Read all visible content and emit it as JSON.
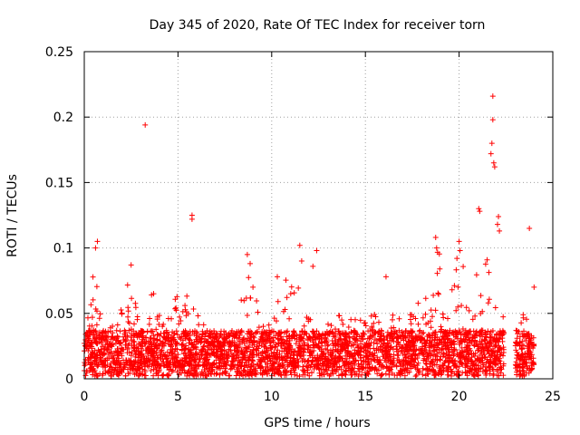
{
  "chart_data": {
    "type": "scatter",
    "title": "Day 345 of 2020, Rate Of TEC Index for receiver torn",
    "xlabel": "GPS time / hours",
    "ylabel": "ROTI / TECUs",
    "xlim": [
      0,
      25
    ],
    "ylim": [
      0,
      0.25
    ],
    "xticks": [
      0,
      5,
      10,
      15,
      20,
      25
    ],
    "yticks": [
      0,
      0.05,
      0.1,
      0.15,
      0.2,
      0.25
    ],
    "xtick_labels": [
      "0",
      "5",
      "10",
      "15",
      "20",
      "25"
    ],
    "ytick_labels": [
      "0",
      "0.05",
      "0.1",
      "0.15",
      "0.2",
      "0.25"
    ],
    "grid": true,
    "marker": "+",
    "color": "#ff0000",
    "series": [
      {
        "name": "ROTI",
        "dense_band": {
          "x_range": [
            0,
            24
          ],
          "gaps_hours": [
            [
              22.4,
              23.0
            ]
          ],
          "typical_max": 0.035,
          "peak_envelope": [
            [
              0.0,
              0.035
            ],
            [
              0.3,
              0.06
            ],
            [
              0.6,
              0.1
            ],
            [
              0.9,
              0.045
            ],
            [
              1.5,
              0.04
            ],
            [
              2.0,
              0.075
            ],
            [
              2.6,
              0.07
            ],
            [
              3.0,
              0.04
            ],
            [
              3.6,
              0.065
            ],
            [
              4.2,
              0.045
            ],
            [
              4.8,
              0.07
            ],
            [
              5.5,
              0.065
            ],
            [
              6.0,
              0.05
            ],
            [
              7.0,
              0.03
            ],
            [
              8.0,
              0.03
            ],
            [
              8.8,
              0.095
            ],
            [
              9.3,
              0.06
            ],
            [
              10.0,
              0.04
            ],
            [
              10.5,
              0.075
            ],
            [
              11.5,
              0.1
            ],
            [
              12.0,
              0.05
            ],
            [
              13.0,
              0.045
            ],
            [
              13.8,
              0.055
            ],
            [
              14.5,
              0.045
            ],
            [
              15.5,
              0.05
            ],
            [
              16.5,
              0.05
            ],
            [
              17.5,
              0.05
            ],
            [
              18.3,
              0.07
            ],
            [
              18.8,
              0.105
            ],
            [
              19.3,
              0.075
            ],
            [
              20.0,
              0.1
            ],
            [
              20.8,
              0.075
            ],
            [
              21.2,
              0.13
            ],
            [
              21.8,
              0.095
            ],
            [
              22.3,
              0.05
            ],
            [
              23.0,
              0.045
            ],
            [
              23.5,
              0.05
            ],
            [
              24.0,
              0.03
            ]
          ]
        },
        "values": [
          {
            "x": 3.25,
            "y": 0.194
          },
          {
            "x": 5.75,
            "y": 0.125
          },
          {
            "x": 5.75,
            "y": 0.122
          },
          {
            "x": 0.7,
            "y": 0.105
          },
          {
            "x": 0.6,
            "y": 0.1
          },
          {
            "x": 8.7,
            "y": 0.095
          },
          {
            "x": 8.85,
            "y": 0.088
          },
          {
            "x": 10.3,
            "y": 0.078
          },
          {
            "x": 11.5,
            "y": 0.102
          },
          {
            "x": 11.6,
            "y": 0.09
          },
          {
            "x": 12.4,
            "y": 0.098
          },
          {
            "x": 12.2,
            "y": 0.086
          },
          {
            "x": 16.1,
            "y": 0.078
          },
          {
            "x": 18.75,
            "y": 0.108
          },
          {
            "x": 18.8,
            "y": 0.1
          },
          {
            "x": 20.0,
            "y": 0.105
          },
          {
            "x": 20.05,
            "y": 0.098
          },
          {
            "x": 21.05,
            "y": 0.13
          },
          {
            "x": 21.1,
            "y": 0.128
          },
          {
            "x": 21.8,
            "y": 0.216
          },
          {
            "x": 21.8,
            "y": 0.198
          },
          {
            "x": 21.75,
            "y": 0.18
          },
          {
            "x": 21.7,
            "y": 0.172
          },
          {
            "x": 21.85,
            "y": 0.165
          },
          {
            "x": 21.9,
            "y": 0.162
          },
          {
            "x": 22.1,
            "y": 0.124
          },
          {
            "x": 22.05,
            "y": 0.118
          },
          {
            "x": 22.15,
            "y": 0.113
          },
          {
            "x": 23.75,
            "y": 0.115
          },
          {
            "x": 24.0,
            "y": 0.07
          },
          {
            "x": 2.5,
            "y": 0.087
          },
          {
            "x": 3.7,
            "y": 0.065
          },
          {
            "x": 9.0,
            "y": 0.07
          }
        ]
      }
    ]
  }
}
